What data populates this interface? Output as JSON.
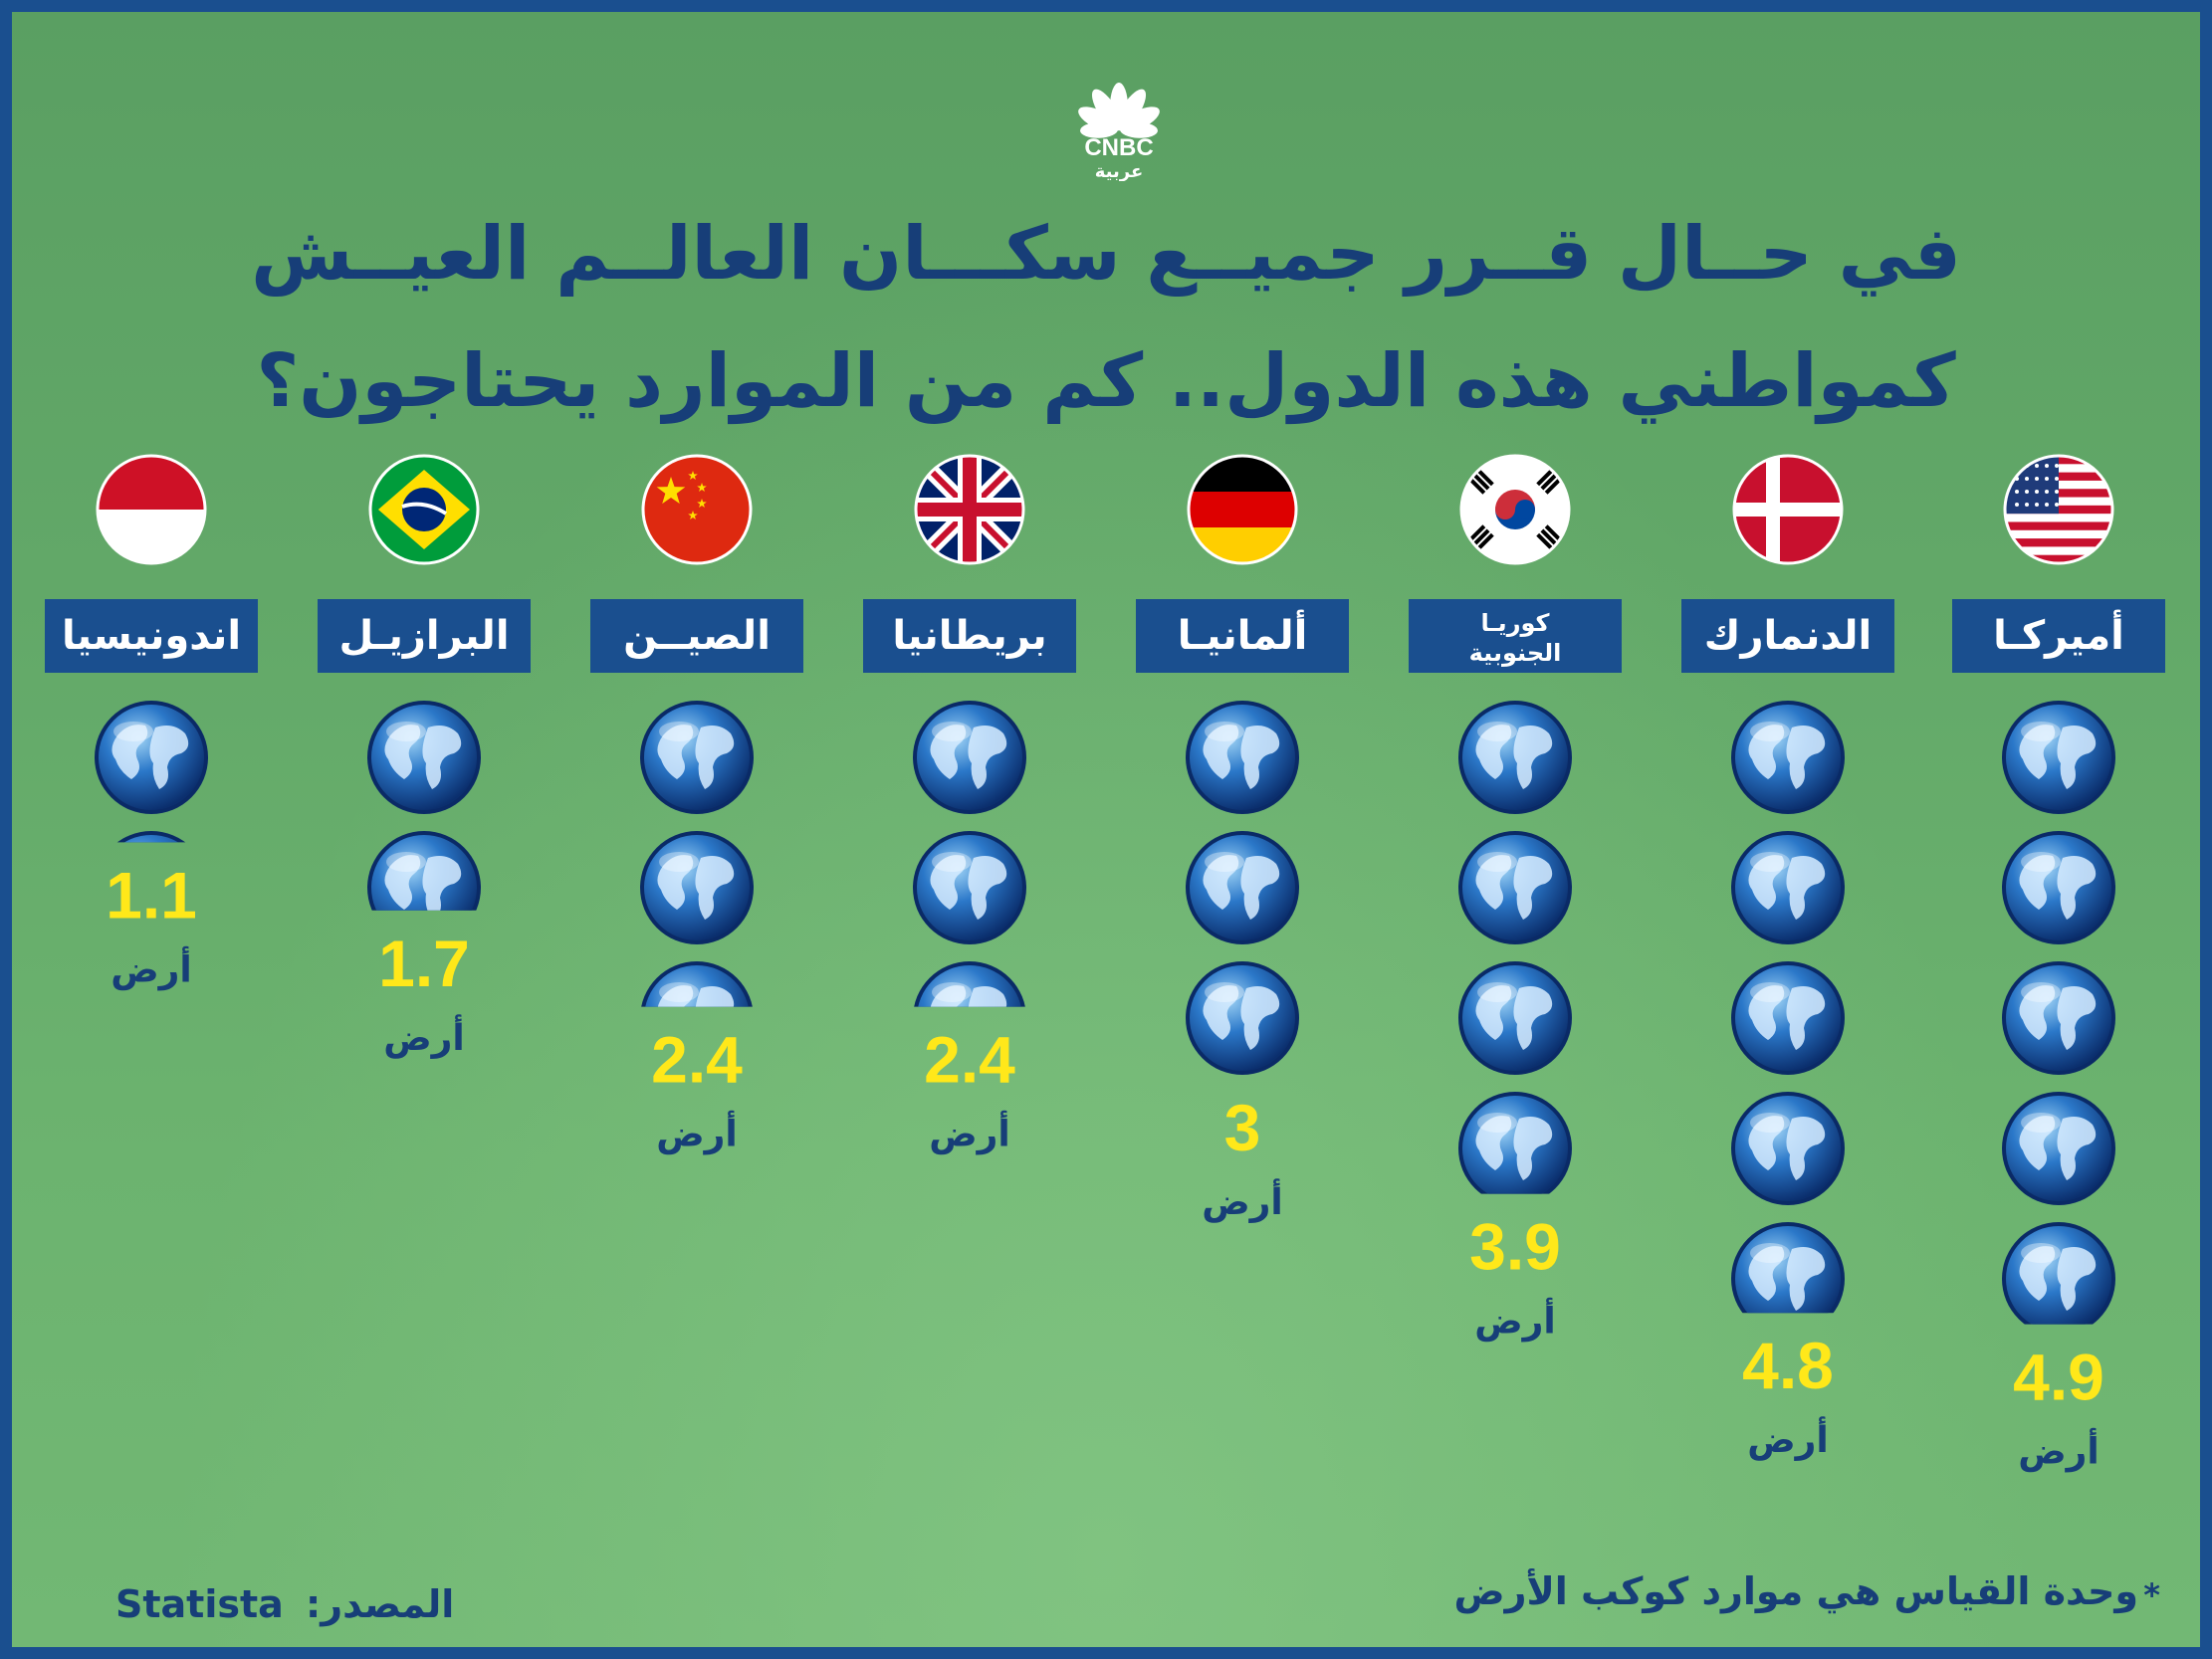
{
  "logo": {
    "brand": "CNBC",
    "subtitle": "عربية"
  },
  "title": {
    "line1": "في حــال قــرر جميــع سكـــان العالــم العيــش",
    "line2": "كمواطني هذه الدول.. كم من الموارد يحتاجون؟"
  },
  "colors": {
    "background": "#64aa69",
    "border": "#1a4f8f",
    "label_box": "#1a4f8f",
    "value": "#ffe81a",
    "unit": "#173e78",
    "globe": "#1565c0"
  },
  "chart_data": {
    "type": "bar",
    "orientation": "vertical-pictogram",
    "unit_icon": "globe-icon",
    "categories": [
      "أميركـا",
      "الدنمارك",
      "كوريـا الجنوبية",
      "ألمانيـا",
      "بريطانيا",
      "الصيــن",
      "البرازيـل",
      "اندونيسيا"
    ],
    "values": [
      4.9,
      4.8,
      3.9,
      3,
      2.4,
      2.4,
      1.7,
      1.1
    ],
    "value_labels": [
      "4.9",
      "4.8",
      "3.9",
      "3",
      "2.4",
      "2.4",
      "1.7",
      "1.1"
    ],
    "unit_label": "أرض",
    "flags": [
      "usa",
      "denmark",
      "south-korea",
      "germany",
      "uk",
      "china",
      "brazil",
      "indonesia"
    ]
  },
  "footer": {
    "source_label": "المصدر:",
    "source_value": "Statista",
    "note": "وحدة القياس هي موارد كوكب الأرض",
    "note_marker": "*"
  }
}
